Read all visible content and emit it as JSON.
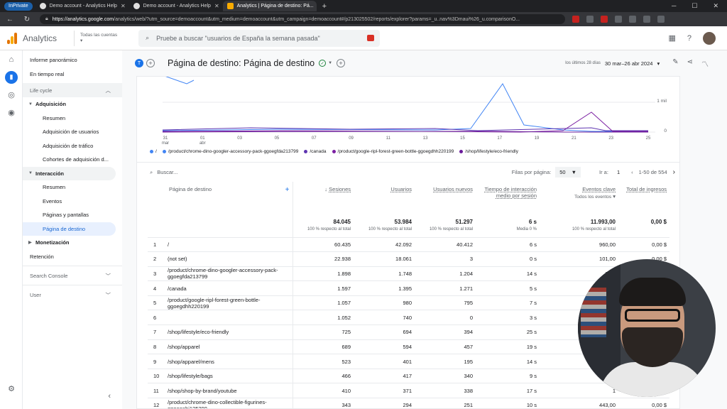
{
  "browser": {
    "inprivate": "InPrivate",
    "tabs": [
      {
        "title": "Demo account - Analytics Help",
        "active": false
      },
      {
        "title": "Demo account - Analytics Help",
        "active": false
      },
      {
        "title": "Analytics | Página de destino: Pá...",
        "active": true
      }
    ],
    "url_domain": "https://analytics.google.com",
    "url_rest": "/analytics/web/?utm_source=demoaccount&utm_medium=demoaccount&utm_campaign=demoaccount#/p213025502/reports/explorer?params=_u..nav%3Dmaui%26_u.comparisonO..."
  },
  "header": {
    "app_name": "Analytics",
    "account_label": "Todas las cuentas",
    "search_placeholder": "Pruebe a buscar \"usuarios de España la semana pasada\""
  },
  "nav": {
    "top": [
      "Informe panorámico",
      "En tiempo real"
    ],
    "lifecycle": "Life cycle",
    "adquisicion": "Adquisición",
    "adq_items": [
      "Resumen",
      "Adquisición de usuarios",
      "Adquisición de tráfico",
      "Cohortes de adquisición d..."
    ],
    "interaccion": "Interacción",
    "int_items": [
      "Resumen",
      "Eventos",
      "Páginas y pantallas",
      "Página de destino"
    ],
    "monetizacion": "Monetización",
    "retencion": "Retención",
    "search_console": "Search Console",
    "user": "User"
  },
  "page": {
    "badge": "T",
    "title": "Página de destino: Página de destino",
    "range_label": "los últimos 28 días",
    "range": "30 mar–26 abr 2024"
  },
  "chart_data": {
    "type": "line",
    "x": [
      "31 mar",
      "01 abr",
      "03",
      "05",
      "07",
      "09",
      "11",
      "13",
      "15",
      "17",
      "19",
      "21",
      "23",
      "25"
    ],
    "ytick": "1 mil",
    "yzero": "0",
    "series": [
      {
        "name": "/",
        "color": "#4285f4"
      },
      {
        "name": "/product/chrome-dino-googler-accessory-pack-ggoegfda213799",
        "color": "#4285f4"
      },
      {
        "name": "/canada",
        "color": "#5e35b1"
      },
      {
        "name": "/product/google-ripl-forest-green-bottle-ggoegdhh220199",
        "color": "#7b1fa2"
      },
      {
        "name": "/shop/lifestyle/eco-friendly",
        "color": "#6a1b9a"
      }
    ]
  },
  "toolbar": {
    "search": "Buscar...",
    "rows_per_page_label": "Filas por página:",
    "rows_per_page": "50",
    "goto_label": "Ir a:",
    "goto_value": "1",
    "range": "1-50 de 554"
  },
  "table": {
    "dim_header": "Página de destino",
    "columns": [
      "Sesiones",
      "Usuarios",
      "Usuarios nuevos",
      "Tiempo de interacción medio por sesión",
      "Eventos clave",
      "Total de ingresos"
    ],
    "eventos_sub": "Todos los eventos",
    "totals": [
      {
        "big": "84.045",
        "sm": "100 % respecto al total"
      },
      {
        "big": "53.984",
        "sm": "100 % respecto al total"
      },
      {
        "big": "51.297",
        "sm": "100 % respecto al total"
      },
      {
        "big": "6 s",
        "sm": "Media 0 %"
      },
      {
        "big": "11.993,00",
        "sm": "100 % respecto al total"
      },
      {
        "big": "0,00 $",
        "sm": ""
      }
    ],
    "rows": [
      [
        "1",
        "/",
        "60.435",
        "42.092",
        "40.412",
        "6 s",
        "960,00",
        "0,00 $"
      ],
      [
        "2",
        "(not set)",
        "22.938",
        "18.061",
        "3",
        "0 s",
        "101,00",
        "0,00 $"
      ],
      [
        "3",
        "/product/chrome-dino-googler-accessory-pack-ggoegfda213799",
        "1.898",
        "1.748",
        "1.204",
        "14 s",
        "2.55",
        ""
      ],
      [
        "4",
        "/canada",
        "1.597",
        "1.395",
        "1.271",
        "5 s",
        "",
        ""
      ],
      [
        "5",
        "/product/google-ripl-forest-green-bottle-ggoegdhh220199",
        "1.057",
        "980",
        "795",
        "7 s",
        "",
        ""
      ],
      [
        "6",
        "",
        "1.052",
        "740",
        "0",
        "3 s",
        "",
        ""
      ],
      [
        "7",
        "/shop/lifestyle/eco-friendly",
        "725",
        "694",
        "394",
        "25 s",
        "",
        ""
      ],
      [
        "8",
        "/shop/apparel",
        "689",
        "594",
        "457",
        "19 s",
        "",
        ""
      ],
      [
        "9",
        "/shop/apparel/mens",
        "523",
        "401",
        "195",
        "14 s",
        "",
        ""
      ],
      [
        "10",
        "/shop/lifestyle/bags",
        "466",
        "417",
        "340",
        "9 s",
        "",
        ""
      ],
      [
        "11",
        "/shop/shop-by-brand/youtube",
        "410",
        "371",
        "338",
        "17 s",
        "1",
        ""
      ],
      [
        "12",
        "/product/chrome-dino-collectible-figurines-ggoegabj125299",
        "343",
        "294",
        "251",
        "10 s",
        "443,00",
        "0,00 $"
      ]
    ]
  }
}
